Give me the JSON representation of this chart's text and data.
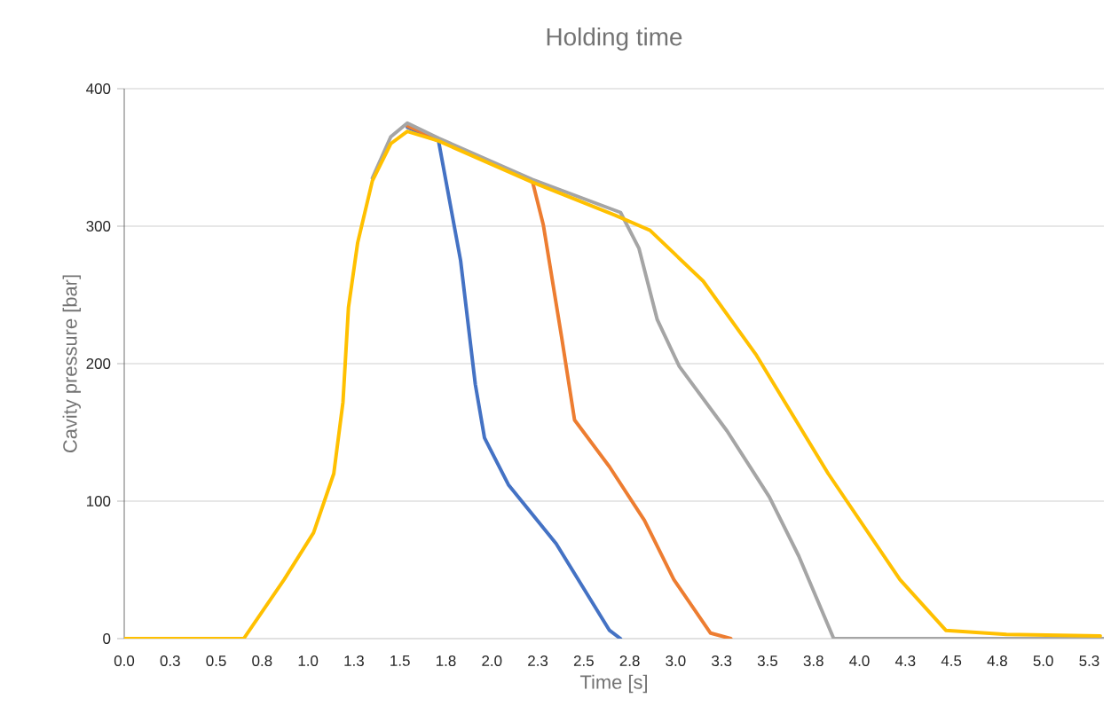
{
  "chart_data": {
    "type": "line",
    "title": "Holding time",
    "xlabel": "Time [s]",
    "ylabel": "Cavity pressure [bar]",
    "xlim": [
      0,
      5.33
    ],
    "ylim": [
      0,
      400
    ],
    "xticks": [
      {
        "value": 0,
        "label": "0.0"
      },
      {
        "value": 0.25,
        "label": "0.3"
      },
      {
        "value": 0.5,
        "label": "0.5"
      },
      {
        "value": 0.75,
        "label": "0.8"
      },
      {
        "value": 1,
        "label": "1.0"
      },
      {
        "value": 1.25,
        "label": "1.3"
      },
      {
        "value": 1.5,
        "label": "1.5"
      },
      {
        "value": 1.75,
        "label": "1.8"
      },
      {
        "value": 2,
        "label": "2.0"
      },
      {
        "value": 2.25,
        "label": "2.3"
      },
      {
        "value": 2.5,
        "label": "2.5"
      },
      {
        "value": 2.75,
        "label": "2.8"
      },
      {
        "value": 3,
        "label": "3.0"
      },
      {
        "value": 3.25,
        "label": "3.3"
      },
      {
        "value": 3.5,
        "label": "3.5"
      },
      {
        "value": 3.75,
        "label": "3.8"
      },
      {
        "value": 4,
        "label": "4.0"
      },
      {
        "value": 4.25,
        "label": "4.3"
      },
      {
        "value": 4.5,
        "label": "4.5"
      },
      {
        "value": 4.75,
        "label": "4.8"
      },
      {
        "value": 5,
        "label": "5.0"
      },
      {
        "value": 5.25,
        "label": "5.3"
      }
    ],
    "yticks": [
      0,
      100,
      200,
      300,
      400
    ],
    "grid": "y",
    "legend": false,
    "marker": "none",
    "line_style": "solid",
    "series": [
      {
        "color": "#4472c4",
        "x": [
          1.54,
          1.71,
          1.83,
          1.91,
          1.96,
          2.09,
          2.35,
          2.64,
          2.7
        ],
        "values": [
          372,
          362,
          275,
          185,
          146,
          112,
          69,
          6,
          0
        ]
      },
      {
        "color": "#ed7d31",
        "x": [
          1.54,
          1.71,
          2.22,
          2.28,
          2.38,
          2.45,
          2.64,
          2.83,
          2.99,
          3.19,
          3.3
        ],
        "values": [
          373,
          363,
          333,
          301,
          219,
          159,
          125,
          86,
          43,
          4,
          0
        ]
      },
      {
        "color": "#a5a5a5",
        "x": [
          1.35,
          1.45,
          1.54,
          1.71,
          2.22,
          2.7,
          2.8,
          2.9,
          3.02,
          3.28,
          3.51,
          3.67,
          3.86,
          5.33
        ],
        "values": [
          335,
          365,
          375,
          364,
          334,
          310,
          284,
          232,
          198,
          151,
          103,
          60,
          0,
          0
        ]
      },
      {
        "color": "#ffc000",
        "x": [
          0,
          0.65,
          0.87,
          1.03,
          1.14,
          1.19,
          1.22,
          1.27,
          1.35,
          1.45,
          1.54,
          1.71,
          2.22,
          2.67,
          2.86,
          3.15,
          3.44,
          3.83,
          4.22,
          4.47,
          4.8,
          5.31
        ],
        "values": [
          0,
          0,
          43,
          77,
          120,
          172,
          241,
          288,
          333,
          360,
          369,
          362,
          332,
          308,
          297,
          260,
          206,
          120,
          43,
          6,
          3,
          2
        ]
      }
    ]
  }
}
